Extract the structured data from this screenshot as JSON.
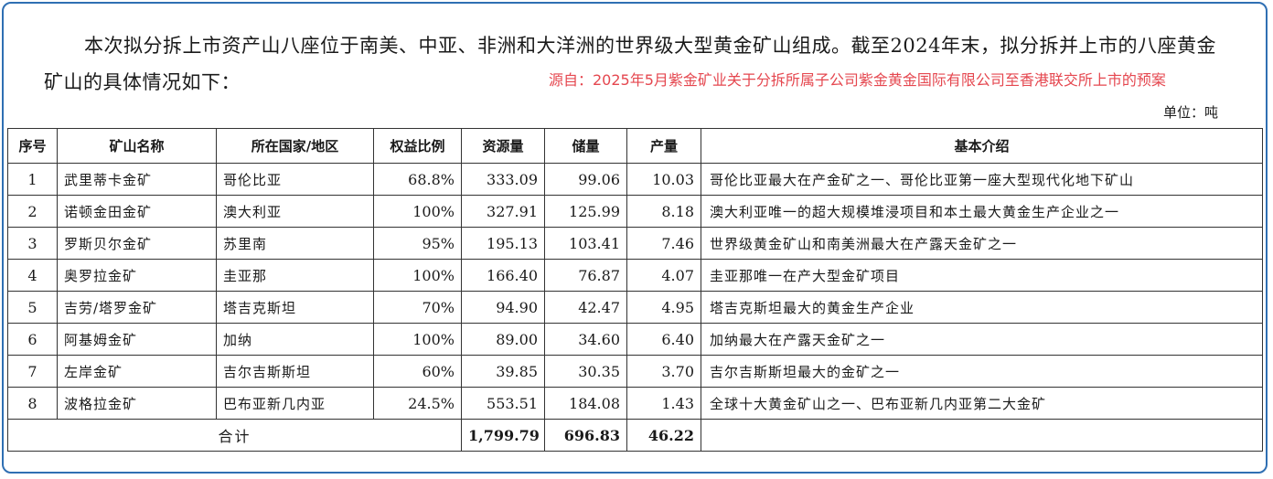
{
  "intro": {
    "text": "本次拟分拆上市资产山八座位于南美、中亚、非洲和大洋洲的世界级大型黄金矿山组成。截至2024年末，拟分拆并上市的八座黄金矿山的具体情况如下："
  },
  "source_note": "源自：2025年5月紫金矿业关于分拆所属子公司紫金黄金国际有限公司至香港联交所上市的预案",
  "unit_label": "单位：吨",
  "table": {
    "headers": [
      "序号",
      "矿山名称",
      "所在国家/地区",
      "权益比例",
      "资源量",
      "储量",
      "产量",
      "基本介绍"
    ],
    "rows": [
      {
        "no": "1",
        "name": "武里蒂卡金矿",
        "country": "哥伦比亚",
        "equity": "68.8%",
        "resources": "333.09",
        "reserves": "99.06",
        "output": "10.03",
        "intro": "哥伦比亚最大在产金矿之一、哥伦比亚第一座大型现代化地下矿山"
      },
      {
        "no": "2",
        "name": "诺顿金田金矿",
        "country": "澳大利亚",
        "equity": "100%",
        "resources": "327.91",
        "reserves": "125.99",
        "output": "8.18",
        "intro": "澳大利亚唯一的超大规模堆浸项目和本土最大黄金生产企业之一"
      },
      {
        "no": "3",
        "name": "罗斯贝尔金矿",
        "country": "苏里南",
        "equity": "95%",
        "resources": "195.13",
        "reserves": "103.41",
        "output": "7.46",
        "intro": "世界级黄金矿山和南美洲最大在产露天金矿之一"
      },
      {
        "no": "4",
        "name": "奥罗拉金矿",
        "country": "圭亚那",
        "equity": "100%",
        "resources": "166.40",
        "reserves": "76.87",
        "output": "4.07",
        "intro": "圭亚那唯一在产大型金矿项目"
      },
      {
        "no": "5",
        "name": "吉劳/塔罗金矿",
        "country": "塔吉克斯坦",
        "equity": "70%",
        "resources": "94.90",
        "reserves": "42.47",
        "output": "4.95",
        "intro": "塔吉克斯坦最大的黄金生产企业"
      },
      {
        "no": "6",
        "name": "阿基姆金矿",
        "country": "加纳",
        "equity": "100%",
        "resources": "89.00",
        "reserves": "34.60",
        "output": "6.40",
        "intro": "加纳最大在产露天金矿之一"
      },
      {
        "no": "7",
        "name": "左岸金矿",
        "country": "吉尔吉斯斯坦",
        "equity": "60%",
        "resources": "39.85",
        "reserves": "30.35",
        "output": "3.70",
        "intro": "吉尔吉斯斯坦最大的金矿之一"
      },
      {
        "no": "8",
        "name": "波格拉金矿",
        "country": "巴布亚新几内亚",
        "equity": "24.5%",
        "resources": "553.51",
        "reserves": "184.08",
        "output": "1.43",
        "intro": "全球十大黄金矿山之一、巴布亚新几内亚第二大金矿"
      }
    ],
    "total": {
      "label": "合计",
      "resources": "1,799.79",
      "reserves": "696.83",
      "output": "46.22"
    }
  }
}
